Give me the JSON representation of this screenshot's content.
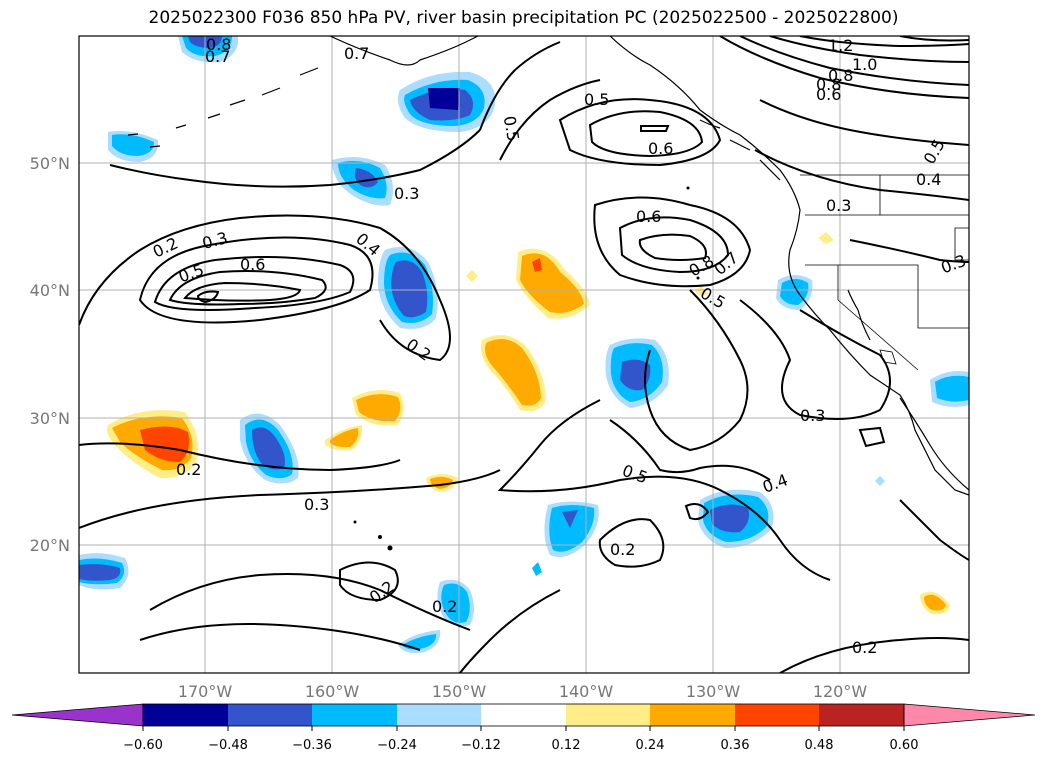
{
  "title": "2025022300 F036 850 hPa PV, river basin precipitation PC (2025022500 - 2025022800)",
  "lat_labels": [
    "50°N",
    "40°N",
    "30°N",
    "20°N"
  ],
  "lon_labels": [
    "170°W",
    "160°W",
    "150°W",
    "140°W",
    "130°W",
    "120°W"
  ],
  "colorbar": {
    "colors": [
      "#9933cc",
      "#000099",
      "#3355cc",
      "#00bbff",
      "#aaddff",
      "#ffffff",
      "#ffee88",
      "#ffaa00",
      "#ff4400",
      "#bb2222",
      "#ff88aa"
    ],
    "ticks": [
      "−0.60",
      "−0.48",
      "−0.36",
      "−0.24",
      "−0.12",
      "0.12",
      "0.24",
      "0.36",
      "0.48",
      "0.60"
    ]
  },
  "contour_labels": [
    "0.8",
    "0.7",
    "0.7",
    "1.2",
    "1.0",
    "0.8",
    "0.8",
    "0.6",
    "0.5",
    "0.5",
    "0.6",
    "0.5",
    "0.4",
    "0.3",
    "0.3",
    "0.2",
    "0.3",
    "0.5",
    "0.6",
    "0.4",
    "0.6",
    "0.8",
    "0.7",
    "0.5",
    "0.3",
    "0.2",
    "0.2",
    "0.3",
    "0.5",
    "0.4",
    "0.3",
    "0.2",
    "0.2",
    "0.2",
    "0.2"
  ]
}
